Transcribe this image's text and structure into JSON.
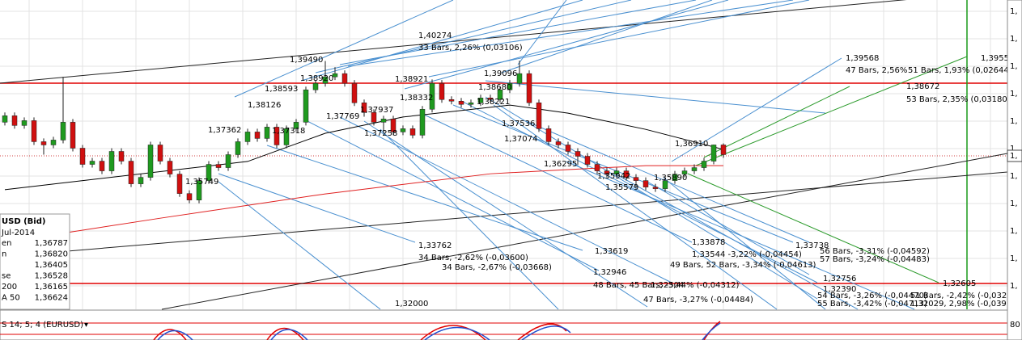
{
  "chart_data": {
    "type": "candlestick",
    "ylim": [
      1.3183,
      1.4137
    ],
    "up_color": "#1f9a1f",
    "down_color": "#d01010",
    "candles": [
      [
        1.376,
        1.379,
        1.375,
        1.378
      ],
      [
        1.378,
        1.379,
        1.374,
        1.375
      ],
      [
        1.375,
        1.3775,
        1.374,
        1.3765
      ],
      [
        1.3765,
        1.3775,
        1.369,
        1.37
      ],
      [
        1.37,
        1.371,
        1.366,
        1.369
      ],
      [
        1.369,
        1.3715,
        1.368,
        1.3705
      ],
      [
        1.3705,
        1.39,
        1.3695,
        1.376
      ],
      [
        1.376,
        1.377,
        1.367,
        1.368
      ],
      [
        1.368,
        1.369,
        1.362,
        1.363
      ],
      [
        1.363,
        1.365,
        1.362,
        1.364
      ],
      [
        1.364,
        1.365,
        1.36,
        1.361
      ],
      [
        1.361,
        1.368,
        1.36,
        1.367
      ],
      [
        1.367,
        1.368,
        1.363,
        1.364
      ],
      [
        1.364,
        1.365,
        1.356,
        1.357
      ],
      [
        1.357,
        1.36,
        1.356,
        1.359
      ],
      [
        1.359,
        1.37,
        1.358,
        1.369
      ],
      [
        1.369,
        1.37,
        1.363,
        1.364
      ],
      [
        1.364,
        1.365,
        1.359,
        1.36
      ],
      [
        1.36,
        1.361,
        1.353,
        1.354
      ],
      [
        1.354,
        1.355,
        1.351,
        1.352
      ],
      [
        1.352,
        1.359,
        1.351,
        1.358
      ],
      [
        1.358,
        1.364,
        1.357,
        1.363
      ],
      [
        1.363,
        1.364,
        1.361,
        1.362
      ],
      [
        1.362,
        1.367,
        1.361,
        1.366
      ],
      [
        1.366,
        1.371,
        1.365,
        1.37
      ],
      [
        1.37,
        1.374,
        1.369,
        1.373
      ],
      [
        1.373,
        1.374,
        1.37,
        1.371
      ],
      [
        1.371,
        1.3755,
        1.37,
        1.3745
      ],
      [
        1.3745,
        1.3755,
        1.368,
        1.369
      ],
      [
        1.369,
        1.375,
        1.368,
        1.374
      ],
      [
        1.374,
        1.377,
        1.373,
        1.376
      ],
      [
        1.376,
        1.387,
        1.375,
        1.386
      ],
      [
        1.386,
        1.389,
        1.385,
        1.388
      ],
      [
        1.388,
        1.3949,
        1.387,
        1.39
      ],
      [
        1.39,
        1.393,
        1.389,
        1.391
      ],
      [
        1.391,
        1.392,
        1.387,
        1.388
      ],
      [
        1.388,
        1.389,
        1.381,
        1.382
      ],
      [
        1.382,
        1.383,
        1.3777,
        1.379
      ],
      [
        1.379,
        1.38,
        1.375,
        1.376
      ],
      [
        1.376,
        1.378,
        1.3726,
        1.377
      ],
      [
        1.377,
        1.378,
        1.372,
        1.373
      ],
      [
        1.373,
        1.375,
        1.372,
        1.374
      ],
      [
        1.374,
        1.375,
        1.371,
        1.372
      ],
      [
        1.372,
        1.381,
        1.371,
        1.38
      ],
      [
        1.38,
        1.3892,
        1.379,
        1.388
      ],
      [
        1.388,
        1.389,
        1.382,
        1.383
      ],
      [
        1.383,
        1.384,
        1.3815,
        1.3825
      ],
      [
        1.3825,
        1.3835,
        1.3805,
        1.3815
      ],
      [
        1.3815,
        1.383,
        1.3805,
        1.382
      ],
      [
        1.382,
        1.3845,
        1.381,
        1.3835
      ],
      [
        1.3835,
        1.3845,
        1.382,
        1.383
      ],
      [
        1.383,
        1.3868,
        1.382,
        1.386
      ],
      [
        1.386,
        1.389,
        1.385,
        1.388
      ],
      [
        1.388,
        1.395,
        1.387,
        1.391
      ],
      [
        1.391,
        1.392,
        1.381,
        1.382
      ],
      [
        1.382,
        1.383,
        1.373,
        1.374
      ],
      [
        1.374,
        1.375,
        1.369,
        1.37
      ],
      [
        1.37,
        1.371,
        1.368,
        1.369
      ],
      [
        1.369,
        1.37,
        1.366,
        1.367
      ],
      [
        1.367,
        1.368,
        1.3629,
        1.3655
      ],
      [
        1.3655,
        1.3665,
        1.362,
        1.363
      ],
      [
        1.363,
        1.364,
        1.36,
        1.361
      ],
      [
        1.361,
        1.362,
        1.359,
        1.36
      ],
      [
        1.36,
        1.362,
        1.359,
        1.361
      ],
      [
        1.361,
        1.362,
        1.358,
        1.359
      ],
      [
        1.359,
        1.36,
        1.3558,
        1.358
      ],
      [
        1.358,
        1.359,
        1.355,
        1.356
      ],
      [
        1.356,
        1.357,
        1.3545,
        1.3555
      ],
      [
        1.3555,
        1.359,
        1.3545,
        1.358
      ],
      [
        1.358,
        1.361,
        1.357,
        1.36
      ],
      [
        1.36,
        1.362,
        1.359,
        1.361
      ],
      [
        1.361,
        1.363,
        1.36,
        1.362
      ],
      [
        1.362,
        1.365,
        1.361,
        1.364
      ],
      [
        1.364,
        1.3691,
        1.363,
        1.369
      ],
      [
        1.369,
        1.3695,
        1.365,
        1.366
      ]
    ],
    "moving_averages": [
      {
        "color": "#000000",
        "x": [
          0,
          25,
          33,
          41,
          52,
          58,
          66,
          74
        ],
        "values": [
          1.3552,
          1.3639,
          1.3726,
          1.3776,
          1.3813,
          1.3788,
          1.3738,
          1.3676
        ]
      },
      {
        "color": "#e02020",
        "x": [
          0,
          16,
          33,
          50,
          58,
          66,
          74
        ],
        "values": [
          1.339,
          1.3464,
          1.3539,
          1.3601,
          1.3614,
          1.3626,
          1.3626
        ]
      }
    ],
    "annotations": [
      "1,40274",
      "33 Bars, 2,26% (0,03106)",
      "1,39490",
      "1,38920",
      "1,38593",
      "1,38126",
      "1,37362",
      "1,37318",
      "1,37769",
      "1,37937",
      "1,37258",
      "1,38921",
      "1,38332",
      "1,39096",
      "1,38680",
      "1,38221",
      "1,37536",
      "1,37074",
      "1,36295",
      "1,35942",
      "1,35890",
      "1,35579",
      "1,36910",
      "1,35749",
      "1,39568",
      "47 Bars, 2,56%",
      "51 Bars, 1,93% (0,02644)",
      "1,39554",
      "1,38672",
      "53 Bars, 2,35% (0,03180)",
      "1,33762",
      "34 Bars, -2,62% (-0,03600)",
      "34 Bars, -2,67% (-0,03668)",
      "1,33619",
      "1,32946",
      "48 Bars, 45 Bars, -3,44% (-0,04312)",
      "1,32504",
      "47 Bars, -3,27% (-0,04484)",
      "1,33878",
      "1,33544 -3,22% (-0,04454)",
      "49 Bars, 52 Bars, -3,34% (-0,04613)",
      "1,33738",
      "56 Bars, -3,31% (-0,04592)",
      "57 Bars, -3,24% (-0,04483)",
      "1,32756",
      "1,32390",
      "54 Bars, -3,26% (-0,04470)",
      "55 Bars, -3,42% (-0,04713)",
      "1,32605",
      "51 Bars, -2,42% (-0,03285)",
      "1,32029, 2,98% (-0,03913)",
      "1,32000"
    ],
    "info_panel": {
      "title": "USD (Bid)",
      "date": "Jul-2014",
      "rows": [
        [
          "en",
          "1,36787"
        ],
        [
          "n",
          "1,36820"
        ],
        [
          "",
          "1,36405"
        ],
        [
          "se",
          "1,36528"
        ],
        [
          "200",
          "1,36165"
        ],
        [
          "A 50",
          "1,36624"
        ]
      ]
    },
    "indicator_label": "S 14; 5; 4 (EURUSD)",
    "right_axis_labels": [
      "1,",
      "1,",
      "1,",
      "1,",
      "1,",
      "1,",
      "1,",
      "1,",
      "1,",
      "1,",
      "1,"
    ],
    "current_price_label": "1,",
    "indicator_axis_label": "80"
  }
}
